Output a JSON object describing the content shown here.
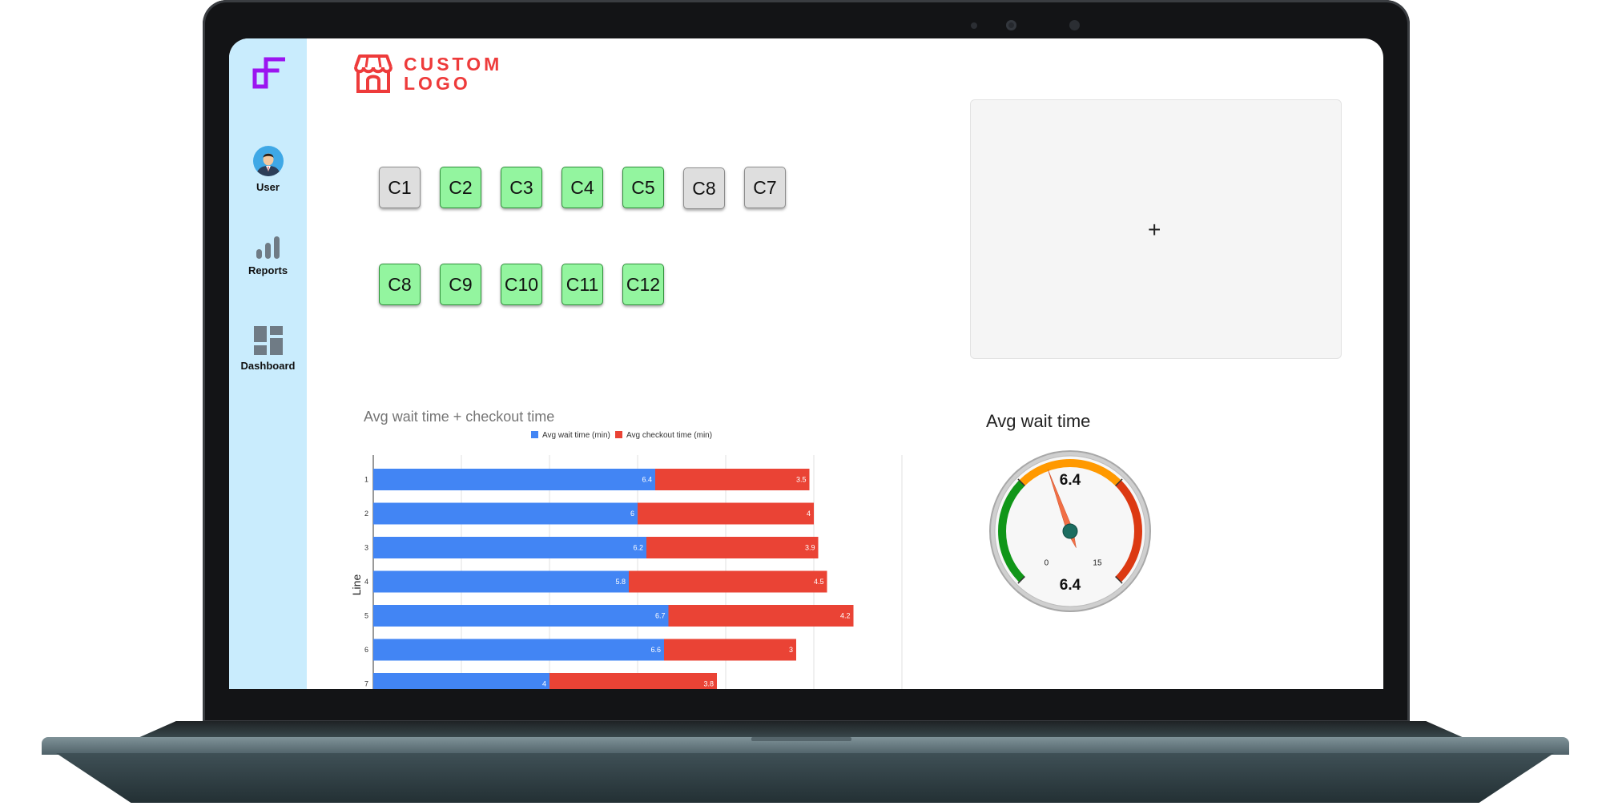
{
  "sidebar": {
    "items": [
      {
        "label": "User",
        "icon": "user-avatar-icon"
      },
      {
        "label": "Reports",
        "icon": "bar-chart-icon"
      },
      {
        "label": "Dashboard",
        "icon": "dashboard-grid-icon"
      }
    ]
  },
  "logo": {
    "line1": "CUSTOM",
    "line2": "LOGO",
    "color": "#ee3b3b",
    "icon": "storefront-icon"
  },
  "counters": {
    "row1": [
      {
        "label": "C1",
        "active": false
      },
      {
        "label": "C2",
        "active": true
      },
      {
        "label": "C3",
        "active": true
      },
      {
        "label": "C4",
        "active": true
      },
      {
        "label": "C5",
        "active": true
      },
      {
        "label": "C8",
        "active": false
      },
      {
        "label": "C7",
        "active": false
      }
    ],
    "row2": [
      {
        "label": "C8",
        "active": true
      },
      {
        "label": "C9",
        "active": true
      },
      {
        "label": "C10",
        "active": true
      },
      {
        "label": "C11",
        "active": true
      },
      {
        "label": "C12",
        "active": true
      }
    ]
  },
  "add_panel": {
    "symbol": "+"
  },
  "chart_data": {
    "type": "bar",
    "orientation": "horizontal",
    "stacked": true,
    "title": "Avg wait time + checkout time",
    "ylabel": "Line",
    "categories": [
      "1",
      "2",
      "3",
      "4",
      "5",
      "6",
      "7"
    ],
    "series": [
      {
        "name": "Avg wait time (min)",
        "color": "#4285f4",
        "values": [
          6.4,
          6,
          6.2,
          5.8,
          6.7,
          6.6,
          4
        ]
      },
      {
        "name": "Avg checkout time (min)",
        "color": "#ea4335",
        "values": [
          3.5,
          4,
          3.9,
          4.5,
          4.2,
          3,
          3.8
        ]
      }
    ],
    "xlim": [
      0,
      12
    ],
    "grid": true,
    "legend": "top"
  },
  "gauge": {
    "title": "Avg wait time",
    "value": 6.4,
    "value_label": "6.4",
    "min": 0,
    "max": 15,
    "min_label": "0",
    "max_label": "15",
    "bands": [
      {
        "from": 0,
        "to": 5,
        "color": "#109618"
      },
      {
        "from": 5,
        "to": 10,
        "color": "#ff9900"
      },
      {
        "from": 10,
        "to": 15,
        "color": "#dc3912"
      }
    ]
  }
}
